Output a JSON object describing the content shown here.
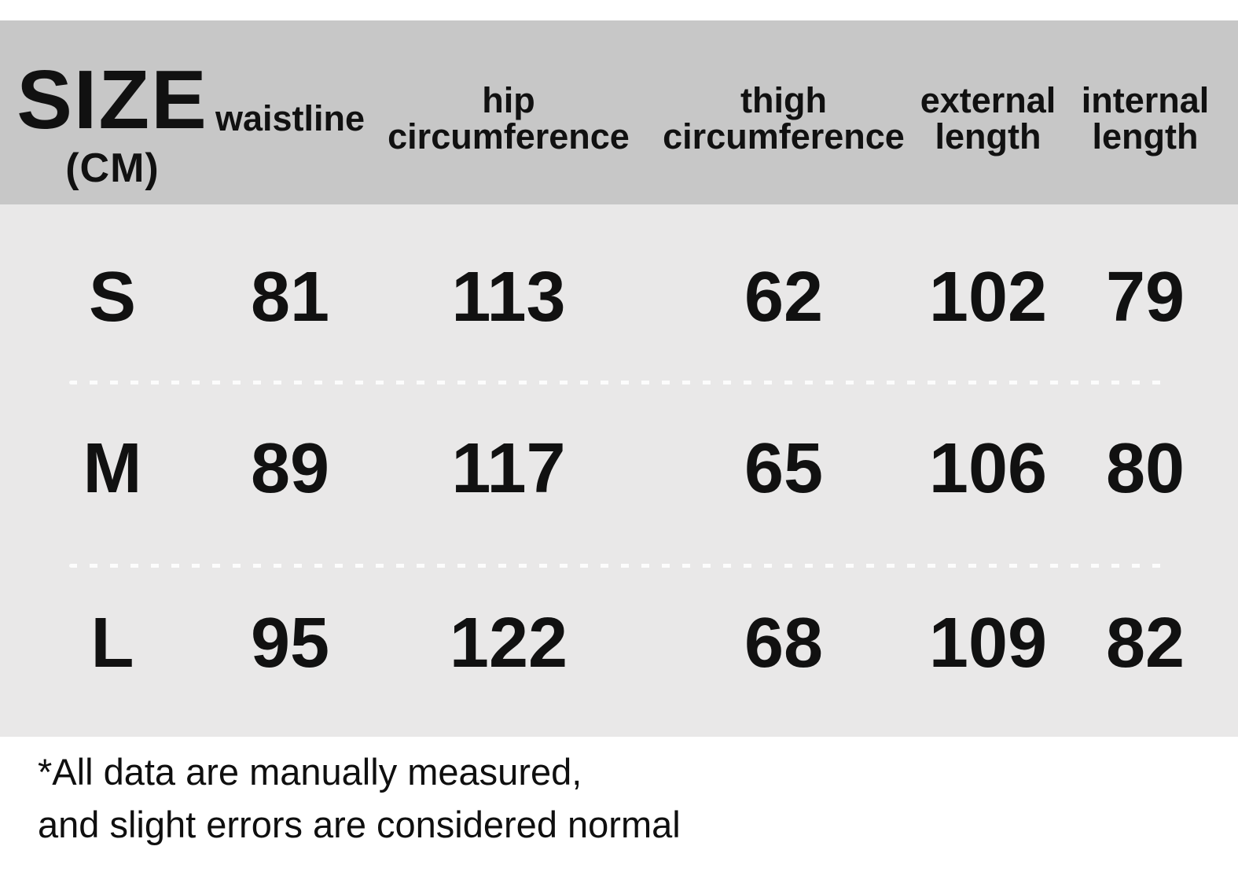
{
  "title": {
    "size_title": "SIZE",
    "size_unit": "(CM)"
  },
  "header": {
    "cols": [
      {
        "label": "waistline"
      },
      {
        "line1": "hip",
        "line2": "circumference"
      },
      {
        "line1": "thigh",
        "line2": "circumference"
      },
      {
        "line1": "external",
        "line2": "length"
      },
      {
        "line1": "internal",
        "line2": "length"
      }
    ]
  },
  "rows": [
    {
      "size": "S",
      "waistline": "81",
      "hip": "113",
      "thigh": "62",
      "external": "102",
      "internal": "79"
    },
    {
      "size": "M",
      "waistline": "89",
      "hip": "117",
      "thigh": "65",
      "external": "106",
      "internal": "80"
    },
    {
      "size": "L",
      "waistline": "95",
      "hip": "122",
      "thigh": "68",
      "external": "109",
      "internal": "82"
    }
  ],
  "footnote": {
    "line1": "*All data are manually measured,",
    "line2": "and slight errors are considered normal"
  },
  "colors": {
    "page_bg": "#ffffff",
    "header_bg": "#c7c7c7",
    "body_bg": "#e9e8e8",
    "text": "#111111",
    "note_text": "#0f0f0f",
    "separator": "#fcfcfc"
  }
}
